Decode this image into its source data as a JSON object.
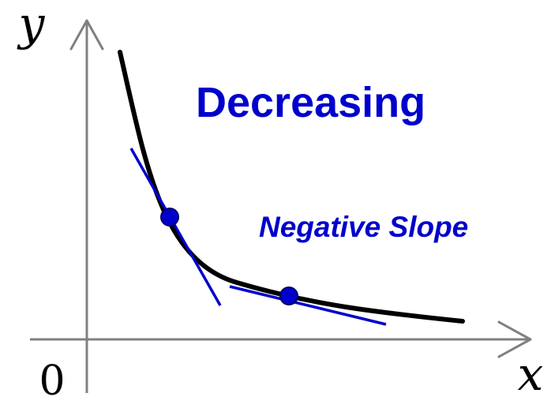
{
  "diagram": {
    "title": "Decreasing",
    "subtitle": "Negative Slope",
    "axes": {
      "x_label": "x",
      "y_label": "y",
      "origin_label": "0"
    },
    "colors": {
      "curve": "#000000",
      "tangent": "#0000cc",
      "point": "#0000cc",
      "title": "#0000cc",
      "axis": "#808080",
      "label": "#000000"
    }
  }
}
